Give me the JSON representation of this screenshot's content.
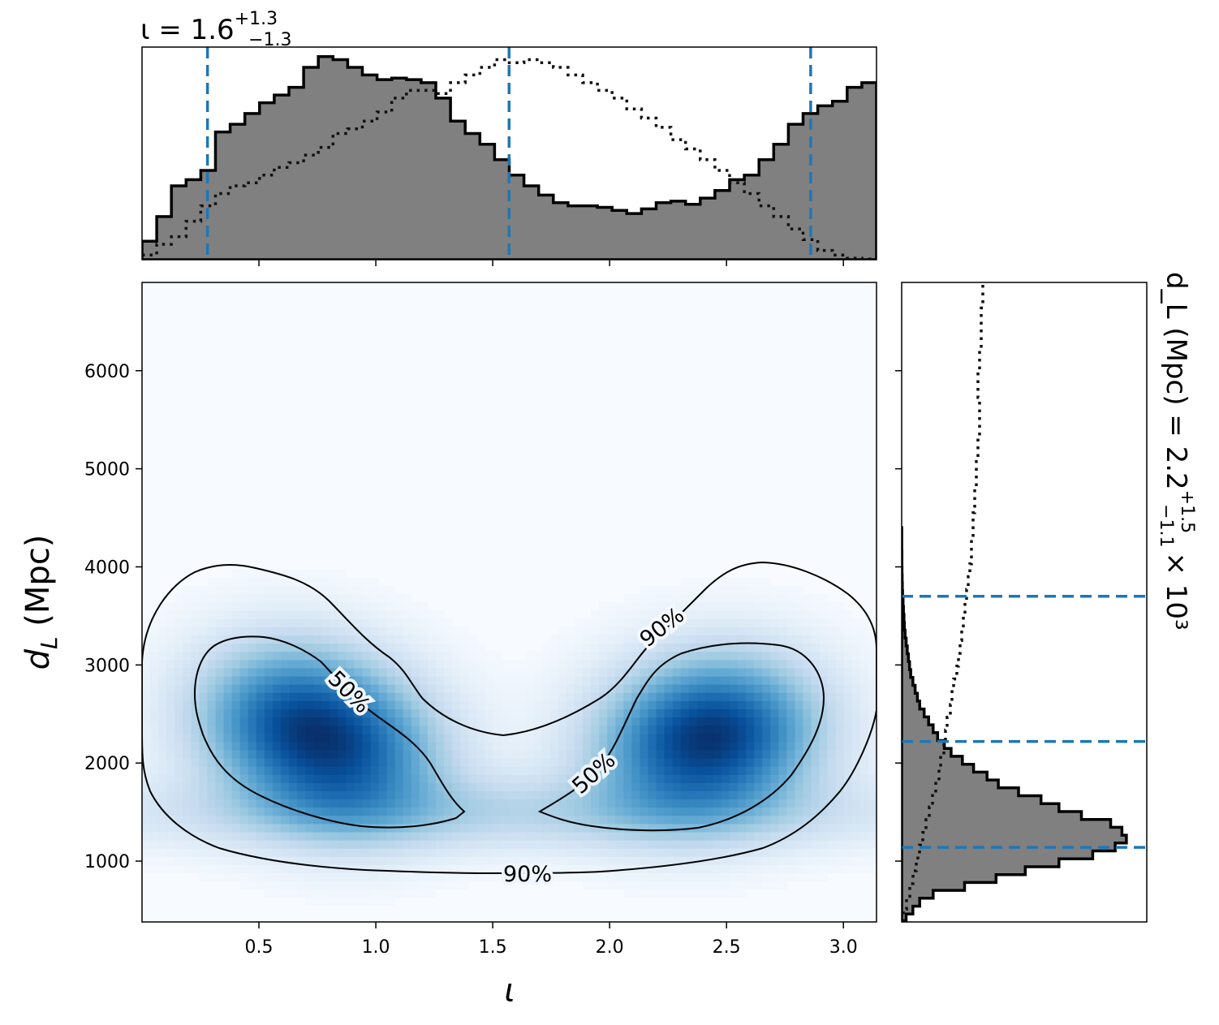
{
  "chart_data": {
    "type": "corner-plot",
    "panels": {
      "top_histogram": {
        "type": "histogram",
        "parameter": "ι",
        "title_lead": "ι = 1.6",
        "title_sup": "+1.3",
        "title_sub": "−1.3",
        "xlim": [
          0.0,
          3.1416
        ],
        "bins": 50,
        "posterior_density": [
          0.12,
          0.28,
          0.48,
          0.52,
          0.58,
          0.83,
          0.88,
          0.95,
          1.02,
          1.07,
          1.12,
          1.25,
          1.32,
          1.3,
          1.25,
          1.2,
          1.17,
          1.18,
          1.17,
          1.15,
          1.05,
          0.9,
          0.82,
          0.75,
          0.65,
          0.55,
          0.48,
          0.42,
          0.37,
          0.35,
          0.35,
          0.34,
          0.32,
          0.3,
          0.33,
          0.37,
          0.38,
          0.36,
          0.4,
          0.45,
          0.52,
          0.55,
          0.65,
          0.75,
          0.88,
          0.95,
          1.0,
          1.03,
          1.12,
          1.15
        ],
        "prior_density": [
          0.03,
          0.1,
          0.15,
          0.25,
          0.35,
          0.43,
          0.48,
          0.5,
          0.55,
          0.6,
          0.63,
          0.68,
          0.73,
          0.82,
          0.85,
          0.9,
          0.96,
          1.05,
          1.1,
          1.1,
          1.08,
          1.15,
          1.2,
          1.25,
          1.3,
          1.28,
          1.3,
          1.28,
          1.25,
          1.2,
          1.15,
          1.1,
          1.05,
          0.98,
          0.92,
          0.86,
          0.78,
          0.72,
          0.65,
          0.58,
          0.5,
          0.43,
          0.35,
          0.28,
          0.2,
          0.13,
          0.06,
          0.03,
          0.01,
          0.005
        ],
        "quantiles": [
          0.28,
          1.57,
          2.86
        ],
        "quantile_color": "#1f77b4"
      },
      "right_histogram": {
        "type": "histogram",
        "orientation": "horizontal",
        "parameter": "d_L",
        "title_text": "d_L (Mpc) = 2.2",
        "title_sup": "+1.5",
        "title_sub": "−1.1",
        "title_mult": "× 10³",
        "ylim": [
          380,
          6900
        ],
        "posterior_density": [
          0.02,
          0.05,
          0.08,
          0.14,
          0.28,
          0.42,
          0.55,
          0.7,
          0.85,
          0.95,
          1.0,
          0.98,
          0.93,
          0.8,
          0.7,
          0.62,
          0.52,
          0.43,
          0.38,
          0.32,
          0.27,
          0.22,
          0.19,
          0.16,
          0.14,
          0.12,
          0.1,
          0.08,
          0.07,
          0.06,
          0.05,
          0.04,
          0.035,
          0.03,
          0.025,
          0.02,
          0.015,
          0.012,
          0.01,
          0.008,
          0.006,
          0.004,
          0.003,
          0.002,
          0.0015,
          0.001,
          0.001,
          0.0005,
          0.0003,
          0.0002
        ],
        "prior_density": [
          0.01,
          0.03,
          0.05,
          0.07,
          0.09,
          0.11,
          0.13,
          0.15,
          0.17,
          0.19,
          0.21,
          0.23,
          0.24,
          0.26,
          0.27,
          0.28,
          0.3,
          0.31,
          0.32,
          0.34,
          0.35,
          0.36,
          0.37,
          0.38,
          0.39,
          0.4,
          0.41,
          0.42,
          0.43,
          0.43,
          0.44,
          0.44,
          0.45,
          0.45,
          0.46,
          0.46,
          0.47,
          0.47,
          0.48,
          0.48,
          0.48,
          0.47,
          0.47,
          0.48,
          0.48,
          0.49,
          0.49,
          0.49,
          0.5,
          0.5
        ],
        "quantiles": [
          1140,
          2220,
          3700
        ],
        "quantile_color": "#1f77b4"
      },
      "joint": {
        "type": "heatmap",
        "colormap": "Blues",
        "xlabel": "ι",
        "ylabel_main": "d",
        "ylabel_sub": "L",
        "ylabel_rest": " (Mpc)",
        "xlim": [
          0.0,
          3.1416
        ],
        "ylim": [
          380,
          6900
        ],
        "xticks": [
          0.5,
          1.0,
          1.5,
          2.0,
          2.5,
          3.0
        ],
        "xtick_labels": [
          "0.5",
          "1.0",
          "1.5",
          "2.0",
          "2.5",
          "3.0"
        ],
        "yticks": [
          1000,
          2000,
          3000,
          4000,
          5000,
          6000
        ],
        "ytick_labels": [
          "1000",
          "2000",
          "3000",
          "4000",
          "5000",
          "6000"
        ],
        "modes": [
          {
            "iota": 0.62,
            "dL": 2500,
            "weight": 1.0
          },
          {
            "iota": 0.9,
            "dL": 2050,
            "weight": 0.95
          },
          {
            "iota": 2.52,
            "dL": 2380,
            "weight": 1.0
          },
          {
            "iota": 2.28,
            "dL": 2100,
            "weight": 0.75
          }
        ],
        "contours": [
          {
            "level": "50%",
            "label": "50%"
          },
          {
            "level": "90%",
            "label": "90%"
          }
        ],
        "contour_labels": [
          "50%",
          "50%",
          "90%",
          "90%"
        ]
      }
    }
  }
}
